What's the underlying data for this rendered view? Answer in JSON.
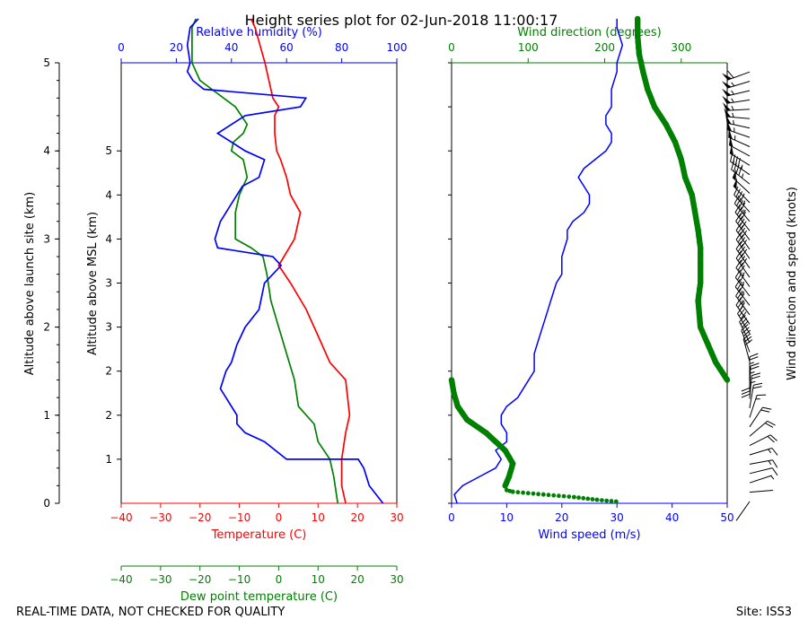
{
  "title": "Height series plot for 02-Jun-2018 11:00:17",
  "footer": {
    "left": "REAL-TIME DATA, NOT CHECKED FOR QUALITY",
    "right": "Site: ISS3"
  },
  "colors": {
    "temperature": "#ff0000",
    "dewpoint": "#008000",
    "humidity": "#0000ff",
    "wind_speed": "#0000ff",
    "wind_direction": "#008000",
    "barbs": "#000000"
  },
  "chart_data": [
    {
      "type": "line",
      "name": "thermo",
      "xlabel_temperature": "Temperature (C)",
      "xlabel_dewpoint": "Dew point temperature (C)",
      "xlabel_humidity": "Relative humidity (%)",
      "ylabel_launch": "Altitude above launch site (km)",
      "ylabel_msl": "Altitude above MSL (km)",
      "temp_ticks": [
        "−40",
        "−30",
        "−20",
        "−10",
        "0",
        "10",
        "20",
        "30"
      ],
      "temp_range": [
        -40,
        30
      ],
      "humidity_ticks": [
        "0",
        "20",
        "40",
        "60",
        "80",
        "100"
      ],
      "humidity_range": [
        0,
        100
      ],
      "launch_ticks": [
        "0",
        "1",
        "2",
        "3",
        "4",
        "5"
      ],
      "launch_range": [
        0,
        5
      ],
      "msl_ticks": [
        "1",
        "2",
        "2",
        "3",
        "3",
        "4",
        "4",
        "5"
      ],
      "series": [
        {
          "name": "Temperature",
          "values": [
            [
              17,
              0
            ],
            [
              16,
              0.2
            ],
            [
              16,
              0.5
            ],
            [
              17,
              0.8
            ],
            [
              18,
              1
            ],
            [
              17.5,
              1.2
            ],
            [
              17,
              1.4
            ],
            [
              13,
              1.6
            ],
            [
              10,
              1.9
            ],
            [
              7,
              2.2
            ],
            [
              3,
              2.5
            ],
            [
              0,
              2.7
            ],
            [
              4,
              3
            ],
            [
              5.5,
              3.3
            ],
            [
              3,
              3.5
            ],
            [
              2,
              3.7
            ],
            [
              0.5,
              3.9
            ],
            [
              -0.5,
              4
            ],
            [
              -1,
              4.2
            ],
            [
              -1,
              4.4
            ],
            [
              0,
              4.5
            ],
            [
              -1.5,
              4.6
            ],
            [
              -2.5,
              4.8
            ],
            [
              -3.5,
              5
            ],
            [
              -6,
              5.4
            ],
            [
              -7,
              5.5
            ]
          ]
        },
        {
          "name": "Dew point",
          "values": [
            [
              15,
              0
            ],
            [
              14,
              0.3
            ],
            [
              13,
              0.5
            ],
            [
              10,
              0.7
            ],
            [
              9,
              0.9
            ],
            [
              5,
              1.1
            ],
            [
              4,
              1.4
            ],
            [
              2,
              1.7
            ],
            [
              0,
              2
            ],
            [
              -2,
              2.3
            ],
            [
              -3,
              2.6
            ],
            [
              -4,
              2.8
            ],
            [
              -7,
              2.9
            ],
            [
              -11,
              3
            ],
            [
              -11,
              3.3
            ],
            [
              -10,
              3.5
            ],
            [
              -8,
              3.7
            ],
            [
              -9,
              3.9
            ],
            [
              -12,
              4
            ],
            [
              -11.5,
              4.1
            ],
            [
              -9,
              4.2
            ],
            [
              -8,
              4.3
            ],
            [
              -9.5,
              4.4
            ],
            [
              -11,
              4.5
            ],
            [
              -17,
              4.7
            ],
            [
              -20,
              4.8
            ],
            [
              -22,
              5
            ],
            [
              -22,
              5.4
            ],
            [
              -21,
              5.5
            ]
          ]
        },
        {
          "name": "Relative humidity",
          "values": [
            [
              95,
              0
            ],
            [
              90,
              0.2
            ],
            [
              88,
              0.4
            ],
            [
              86,
              0.5
            ],
            [
              60,
              0.5
            ],
            [
              52,
              0.7
            ],
            [
              45,
              0.8
            ],
            [
              42,
              0.9
            ],
            [
              42,
              1
            ],
            [
              40,
              1.1
            ],
            [
              38,
              1.2
            ],
            [
              36,
              1.3
            ],
            [
              38,
              1.5
            ],
            [
              40,
              1.6
            ],
            [
              42,
              1.8
            ],
            [
              45,
              2.0
            ],
            [
              50,
              2.2
            ],
            [
              52,
              2.5
            ],
            [
              58,
              2.7
            ],
            [
              55,
              2.8
            ],
            [
              35,
              2.9
            ],
            [
              34,
              3.0
            ],
            [
              36,
              3.2
            ],
            [
              40,
              3.4
            ],
            [
              44,
              3.6
            ],
            [
              50,
              3.7
            ],
            [
              52,
              3.9
            ],
            [
              45,
              4.0
            ],
            [
              40,
              4.1
            ],
            [
              35,
              4.2
            ],
            [
              45,
              4.4
            ],
            [
              65,
              4.5
            ],
            [
              67,
              4.6
            ],
            [
              30,
              4.7
            ],
            [
              26,
              4.8
            ],
            [
              24,
              4.9
            ],
            [
              25,
              5.0
            ],
            [
              24,
              5.2
            ],
            [
              25,
              5.4
            ],
            [
              28,
              5.5
            ]
          ]
        }
      ]
    },
    {
      "type": "line",
      "name": "wind",
      "xlabel_speed": "Wind speed (m/s)",
      "xlabel_direction": "Wind direction (degrees)",
      "ylabel_barbs": "Wind direction and speed (knots)",
      "speed_ticks": [
        "0",
        "10",
        "20",
        "30",
        "40",
        "50"
      ],
      "speed_range": [
        0,
        50
      ],
      "direction_ticks": [
        "0",
        "100",
        "200",
        "300"
      ],
      "direction_range": [
        0,
        360
      ],
      "altitude_range": [
        0,
        5
      ],
      "series": [
        {
          "name": "Wind speed",
          "values": [
            [
              1,
              0
            ],
            [
              0.5,
              0.1
            ],
            [
              2,
              0.2
            ],
            [
              5,
              0.3
            ],
            [
              8,
              0.4
            ],
            [
              9,
              0.5
            ],
            [
              8,
              0.6
            ],
            [
              10,
              0.7
            ],
            [
              10,
              0.8
            ],
            [
              9,
              0.9
            ],
            [
              9,
              1
            ],
            [
              10,
              1.1
            ],
            [
              12,
              1.2
            ],
            [
              13,
              1.3
            ],
            [
              15,
              1.5
            ],
            [
              15,
              1.7
            ],
            [
              16,
              1.9
            ],
            [
              17,
              2.1
            ],
            [
              18,
              2.3
            ],
            [
              19,
              2.5
            ],
            [
              20,
              2.6
            ],
            [
              20,
              2.8
            ],
            [
              21,
              3
            ],
            [
              21,
              3.1
            ],
            [
              22,
              3.2
            ],
            [
              24,
              3.3
            ],
            [
              25,
              3.4
            ],
            [
              25,
              3.5
            ],
            [
              24,
              3.6
            ],
            [
              23,
              3.7
            ],
            [
              24,
              3.8
            ],
            [
              26,
              3.9
            ],
            [
              28,
              4
            ],
            [
              29,
              4.1
            ],
            [
              29,
              4.2
            ],
            [
              28,
              4.3
            ],
            [
              28,
              4.4
            ],
            [
              29,
              4.5
            ],
            [
              29,
              4.6
            ],
            [
              29,
              4.7
            ],
            [
              30,
              4.9
            ],
            [
              30,
              5.0
            ],
            [
              31,
              5.2
            ],
            [
              30,
              5.4
            ],
            [
              30,
              5.5
            ]
          ]
        },
        {
          "name": "Wind direction",
          "values": [
            [
              215,
              0.02
            ],
            [
              190,
              0.04
            ],
            [
              160,
              0.07
            ],
            [
              120,
              0.1
            ],
            [
              80,
              0.13
            ],
            [
              72,
              0.15
            ],
            [
              70,
              0.2
            ],
            [
              75,
              0.3
            ],
            [
              80,
              0.45
            ],
            [
              70,
              0.6
            ],
            [
              45,
              0.8
            ],
            [
              20,
              0.95
            ],
            [
              8,
              1.1
            ],
            [
              3,
              1.25
            ],
            [
              0,
              1.4
            ],
            [
              360,
              1.4
            ],
            [
              345,
              1.6
            ],
            [
              335,
              1.8
            ],
            [
              325,
              2
            ],
            [
              322,
              2.3
            ],
            [
              325,
              2.5
            ],
            [
              325,
              2.7
            ],
            [
              325,
              2.9
            ],
            [
              322,
              3.1
            ],
            [
              318,
              3.3
            ],
            [
              314,
              3.5
            ],
            [
              305,
              3.7
            ],
            [
              300,
              3.9
            ],
            [
              292,
              4.1
            ],
            [
              280,
              4.3
            ],
            [
              265,
              4.5
            ],
            [
              256,
              4.7
            ],
            [
              250,
              4.9
            ],
            [
              245,
              5.1
            ],
            [
              243,
              5.3
            ],
            [
              243,
              5.5
            ]
          ]
        }
      ]
    }
  ]
}
